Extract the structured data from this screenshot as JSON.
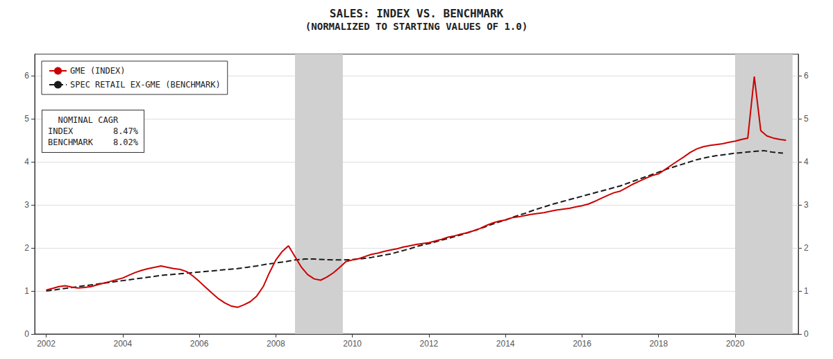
{
  "chart_data": {
    "type": "line",
    "title": "SALES: INDEX VS. BENCHMARK",
    "subtitle": "(NORMALIZED TO STARTING VALUES OF 1.0)",
    "annotations": [
      "  NOMINAL CAGR\nINDEX        8.47%\nBENCHMARK    8.02%"
    ],
    "xlim": [
      2001.7,
      2021.65
    ],
    "xticks": [
      2002,
      2004,
      2006,
      2008,
      2010,
      2012,
      2014,
      2016,
      2018,
      2020
    ],
    "ylim": [
      0,
      6.5
    ],
    "yticks": [
      0,
      1,
      2,
      3,
      4,
      5,
      6
    ],
    "y2lim": [
      0,
      6.5
    ],
    "y2ticks": [
      0,
      1,
      2,
      3,
      4,
      5,
      6
    ],
    "grid": true,
    "legend": "upper left",
    "shaded_regions": [
      {
        "x": [
          2008.5,
          2009.75
        ],
        "color": "#d0d0d0"
      },
      {
        "x": [
          2020.0,
          2021.5
        ],
        "color": "#d0d0d0"
      }
    ],
    "series": [
      {
        "name": "GME (INDEX)",
        "color": "#cc0000",
        "line_style": "solid",
        "x": [
          2002.0,
          2002.17,
          2002.33,
          2002.5,
          2002.67,
          2002.83,
          2003.0,
          2003.17,
          2003.33,
          2003.5,
          2003.67,
          2003.83,
          2004.0,
          2004.17,
          2004.33,
          2004.5,
          2004.67,
          2004.83,
          2005.0,
          2005.17,
          2005.33,
          2005.5,
          2005.67,
          2005.83,
          2006.0,
          2006.17,
          2006.33,
          2006.5,
          2006.67,
          2006.83,
          2007.0,
          2007.17,
          2007.33,
          2007.5,
          2007.67,
          2007.83,
          2008.0,
          2008.17,
          2008.33,
          2008.5,
          2008.67,
          2008.83,
          2009.0,
          2009.17,
          2009.33,
          2009.5,
          2009.67,
          2009.83,
          2010.0,
          2010.17,
          2010.33,
          2010.5,
          2010.67,
          2010.83,
          2011.0,
          2011.17,
          2011.33,
          2011.5,
          2011.67,
          2011.83,
          2012.0,
          2012.17,
          2012.33,
          2012.5,
          2012.67,
          2012.83,
          2013.0,
          2013.17,
          2013.33,
          2013.5,
          2013.67,
          2013.83,
          2014.0,
          2014.17,
          2014.33,
          2014.5,
          2014.67,
          2014.83,
          2015.0,
          2015.17,
          2015.33,
          2015.5,
          2015.67,
          2015.83,
          2016.0,
          2016.17,
          2016.33,
          2016.5,
          2016.67,
          2016.83,
          2017.0,
          2017.17,
          2017.33,
          2017.5,
          2017.67,
          2017.83,
          2018.0,
          2018.17,
          2018.33,
          2018.5,
          2018.67,
          2018.83,
          2019.0,
          2019.17,
          2019.33,
          2019.5,
          2019.67,
          2019.83,
          2020.0,
          2020.17,
          2020.33,
          2020.5,
          2020.67,
          2020.83,
          2021.0,
          2021.17,
          2021.33
        ],
        "values": [
          1.02,
          1.06,
          1.1,
          1.12,
          1.09,
          1.07,
          1.08,
          1.1,
          1.14,
          1.18,
          1.22,
          1.26,
          1.3,
          1.37,
          1.43,
          1.48,
          1.52,
          1.55,
          1.58,
          1.55,
          1.52,
          1.5,
          1.45,
          1.35,
          1.22,
          1.08,
          0.95,
          0.82,
          0.72,
          0.65,
          0.62,
          0.68,
          0.75,
          0.88,
          1.1,
          1.42,
          1.72,
          1.92,
          2.05,
          1.8,
          1.55,
          1.38,
          1.28,
          1.25,
          1.32,
          1.42,
          1.55,
          1.68,
          1.72,
          1.75,
          1.8,
          1.85,
          1.88,
          1.92,
          1.95,
          1.98,
          2.02,
          2.05,
          2.08,
          2.1,
          2.12,
          2.16,
          2.2,
          2.25,
          2.28,
          2.32,
          2.35,
          2.4,
          2.45,
          2.52,
          2.58,
          2.62,
          2.65,
          2.7,
          2.72,
          2.75,
          2.78,
          2.8,
          2.82,
          2.85,
          2.88,
          2.9,
          2.92,
          2.95,
          2.98,
          3.02,
          3.08,
          3.15,
          3.22,
          3.28,
          3.32,
          3.4,
          3.48,
          3.55,
          3.62,
          3.68,
          3.72,
          3.82,
          3.92,
          4.02,
          4.12,
          4.22,
          4.3,
          4.35,
          4.38,
          4.4,
          4.42,
          4.45,
          4.48,
          4.52,
          4.55,
          5.98,
          4.72,
          4.6,
          4.55,
          4.52,
          4.5
        ]
      },
      {
        "name": "SPEC RETAIL EX-GME (BENCHMARK)",
        "color": "#1a1a1a",
        "line_style": "dashed",
        "x": [
          2002.0,
          2002.25,
          2002.5,
          2002.75,
          2003.0,
          2003.25,
          2003.5,
          2003.75,
          2004.0,
          2004.25,
          2004.5,
          2004.75,
          2005.0,
          2005.25,
          2005.5,
          2005.75,
          2006.0,
          2006.25,
          2006.5,
          2006.75,
          2007.0,
          2007.25,
          2007.5,
          2007.75,
          2008.0,
          2008.25,
          2008.5,
          2008.75,
          2009.0,
          2009.25,
          2009.5,
          2009.75,
          2010.0,
          2010.25,
          2010.5,
          2010.75,
          2011.0,
          2011.25,
          2011.5,
          2011.75,
          2012.0,
          2012.25,
          2012.5,
          2012.75,
          2013.0,
          2013.25,
          2013.5,
          2013.75,
          2014.0,
          2014.25,
          2014.5,
          2014.75,
          2015.0,
          2015.25,
          2015.5,
          2015.75,
          2016.0,
          2016.25,
          2016.5,
          2016.75,
          2017.0,
          2017.25,
          2017.5,
          2017.75,
          2018.0,
          2018.25,
          2018.5,
          2018.75,
          2019.0,
          2019.25,
          2019.5,
          2019.75,
          2020.0,
          2020.25,
          2020.5,
          2020.75,
          2021.0,
          2021.25
        ],
        "values": [
          1.0,
          1.03,
          1.06,
          1.09,
          1.12,
          1.15,
          1.18,
          1.21,
          1.24,
          1.27,
          1.3,
          1.33,
          1.36,
          1.38,
          1.4,
          1.42,
          1.44,
          1.46,
          1.48,
          1.5,
          1.52,
          1.55,
          1.58,
          1.62,
          1.65,
          1.68,
          1.72,
          1.74,
          1.74,
          1.73,
          1.72,
          1.72,
          1.73,
          1.75,
          1.78,
          1.82,
          1.86,
          1.92,
          1.98,
          2.05,
          2.1,
          2.16,
          2.22,
          2.28,
          2.35,
          2.42,
          2.5,
          2.58,
          2.65,
          2.73,
          2.8,
          2.88,
          2.95,
          3.02,
          3.08,
          3.14,
          3.2,
          3.26,
          3.32,
          3.38,
          3.44,
          3.52,
          3.6,
          3.68,
          3.76,
          3.84,
          3.91,
          3.98,
          4.05,
          4.1,
          4.14,
          4.17,
          4.2,
          4.22,
          4.24,
          4.26,
          4.22,
          4.2
        ]
      }
    ]
  }
}
